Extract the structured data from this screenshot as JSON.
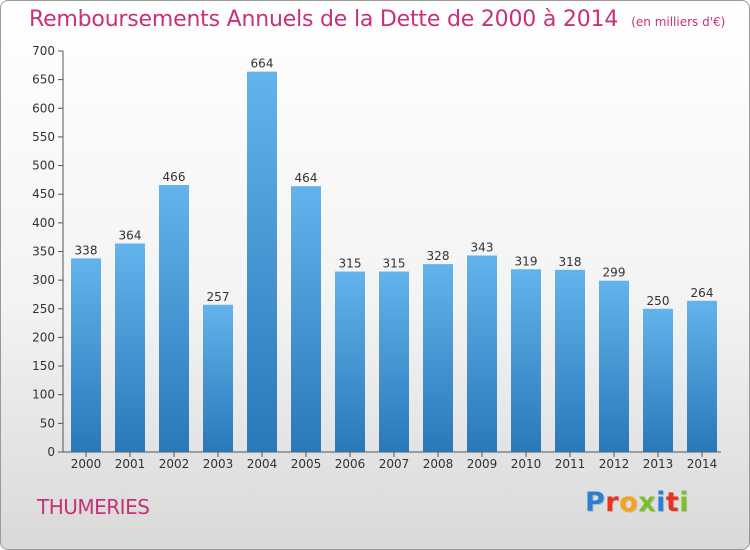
{
  "header": {
    "title": "Remboursements Annuels de la Dette de 2000 à 2014",
    "unit": "(en milliers d'€)"
  },
  "footer": {
    "commune": "THUMERIES",
    "logo_text": "Proxiti",
    "logo_colors": [
      "#2a7fd1",
      "#e8321f",
      "#f4a31b",
      "#7dbf2a",
      "#2a7fd1",
      "#e8321f",
      "#7dbf2a"
    ]
  },
  "colors": {
    "bar_top": "#63b3ec",
    "bar_bottom": "#2a78b8",
    "title": "#c8317a"
  },
  "chart_data": {
    "type": "bar",
    "categories": [
      "2000",
      "2001",
      "2002",
      "2003",
      "2004",
      "2005",
      "2006",
      "2007",
      "2008",
      "2009",
      "2010",
      "2011",
      "2012",
      "2013",
      "2014"
    ],
    "values": [
      338,
      364,
      466,
      257,
      664,
      464,
      315,
      315,
      328,
      343,
      319,
      318,
      299,
      250,
      264
    ],
    "ylim": [
      0,
      700
    ],
    "yticks": [
      0,
      50,
      100,
      150,
      200,
      250,
      300,
      350,
      400,
      450,
      500,
      550,
      600,
      650,
      700
    ],
    "grid": false,
    "data_labels": true
  }
}
